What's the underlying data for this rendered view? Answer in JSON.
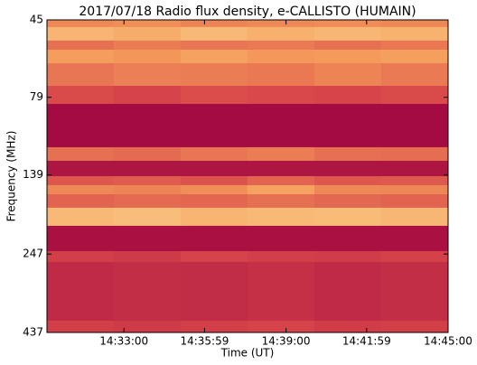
{
  "chart_data": {
    "type": "heatmap",
    "title": "2017/07/18  Radio flux density, e-CALLISTO (HUMAIN)",
    "xlabel": "Time (UT)",
    "ylabel": "Frequency (MHz)",
    "xlim": [
      52209,
      53100
    ],
    "xticks": [
      {
        "value": 52380,
        "label": "14:33:00"
      },
      {
        "value": 52559,
        "label": "14:35:59"
      },
      {
        "value": 52740,
        "label": "14:39:00"
      },
      {
        "value": 52919,
        "label": "14:41:59"
      },
      {
        "value": 53100,
        "label": "14:45:00"
      }
    ],
    "ylim": [
      45,
      437
    ],
    "yticks": [
      45,
      79,
      139,
      247,
      437
    ],
    "yscale": "log",
    "yinverted": true,
    "colorscale": [
      "#9b0040",
      "#d8464a",
      "#f49a5a",
      "#fde7a0"
    ],
    "x": [
      52209,
      52357,
      52506,
      52654,
      52803,
      52951,
      53100
    ],
    "y": [
      45,
      47.4,
      52.3,
      55.9,
      61.7,
      72.7,
      82.9,
      113.6,
      125.4,
      140.2,
      149.7,
      159.9,
      176.4,
      201.2,
      241.9,
      261.6,
      401,
      437
    ],
    "values": [
      [
        60,
        62,
        58,
        60,
        61,
        59
      ],
      [
        78,
        75,
        80,
        76,
        79,
        77
      ],
      [
        50,
        55,
        52,
        54,
        50,
        53
      ],
      [
        68,
        65,
        70,
        66,
        67,
        69
      ],
      [
        52,
        56,
        55,
        53,
        58,
        54
      ],
      [
        35,
        32,
        36,
        34,
        33,
        35
      ],
      [
        5,
        5,
        5,
        5,
        5,
        5
      ],
      [
        50,
        48,
        52,
        55,
        50,
        49
      ],
      [
        10,
        10,
        10,
        10,
        10,
        10
      ],
      [
        40,
        42,
        38,
        45,
        40,
        41
      ],
      [
        60,
        58,
        62,
        70,
        60,
        59
      ],
      [
        45,
        48,
        46,
        50,
        47,
        45
      ],
      [
        80,
        82,
        78,
        80,
        81,
        79
      ],
      [
        8,
        8,
        8,
        8,
        8,
        8
      ],
      [
        30,
        28,
        32,
        30,
        29,
        31
      ],
      [
        20,
        22,
        21,
        23,
        20,
        22
      ],
      [
        30,
        28,
        30,
        32,
        29,
        30
      ]
    ]
  }
}
